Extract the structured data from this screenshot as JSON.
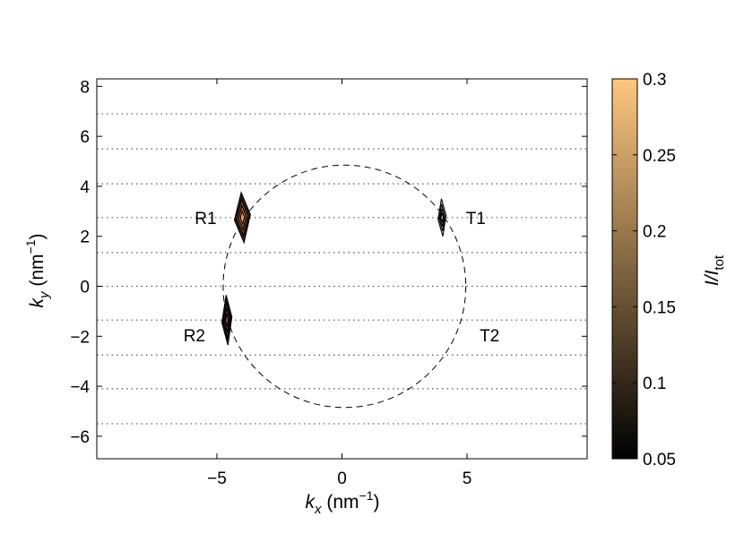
{
  "chart_data": {
    "type": "contour",
    "xlabel": {
      "main": "k",
      "sub": "x",
      "unit_pre": " (nm",
      "unit_sup": "−1",
      "unit_post": ")"
    },
    "ylabel": {
      "main": "k",
      "sub": "y",
      "unit_pre": " (nm",
      "unit_sup": "−1",
      "unit_post": ")"
    },
    "xlim": [
      -9.8,
      9.8
    ],
    "ylim": [
      -6.9,
      8.3
    ],
    "x_ticks": [
      {
        "value": -5,
        "label": "−5"
      },
      {
        "value": 0,
        "label": "0"
      },
      {
        "value": 5,
        "label": "5"
      }
    ],
    "y_ticks": [
      {
        "value": -6,
        "label": "−6"
      },
      {
        "value": -4,
        "label": "−4"
      },
      {
        "value": -2,
        "label": "−2"
      },
      {
        "value": 0,
        "label": "0"
      },
      {
        "value": 2,
        "label": "2"
      },
      {
        "value": 4,
        "label": "4"
      },
      {
        "value": 6,
        "label": "6"
      },
      {
        "value": 8,
        "label": "8"
      }
    ],
    "dotted_lines_ky": [
      6.9,
      5.5,
      4.1,
      2.75,
      1.35,
      0,
      -1.35,
      -2.75,
      -4.1,
      -5.5
    ],
    "circle": {
      "center": [
        0.1,
        0
      ],
      "radius": 4.85,
      "style": "dashed"
    },
    "peaks": [
      {
        "label": "R1",
        "kx": -3.98,
        "ky": 2.75,
        "peak_intensity": 0.25,
        "half_width_kx": 0.32,
        "half_height_ky": 1.0
      },
      {
        "label": "R2",
        "kx": -4.6,
        "ky": -1.35,
        "peak_intensity": 0.17,
        "half_width_kx": 0.2,
        "half_height_ky": 1.0
      },
      {
        "label": "T1",
        "kx": 4.0,
        "ky": 2.75,
        "peak_intensity": 0.07,
        "half_width_kx": 0.16,
        "half_height_ky": 0.75
      },
      {
        "label": "T2",
        "kx": 4.6,
        "ky": -1.35,
        "peak_intensity": 0.0
      }
    ],
    "label_positions": {
      "R1": [
        -5.45,
        2.75
      ],
      "R2": [
        -5.9,
        -1.95
      ],
      "T1": [
        5.35,
        2.75
      ],
      "T2": [
        5.9,
        -1.95
      ]
    },
    "colorbar": {
      "min": 0.05,
      "max": 0.3,
      "ticks": [
        {
          "value": 0.05,
          "label": "0.05"
        },
        {
          "value": 0.1,
          "label": "0.1"
        },
        {
          "value": 0.15,
          "label": "0.15"
        },
        {
          "value": 0.2,
          "label": "0.2"
        },
        {
          "value": 0.25,
          "label": "0.25"
        },
        {
          "value": 0.3,
          "label": "0.3"
        }
      ],
      "label": {
        "main": "I/I",
        "sub": "tot"
      },
      "colormap": "copper",
      "colormap_stops": [
        "#000000",
        "#3f2819",
        "#7f5033",
        "#bf784c",
        "#fea066",
        "#ffc77f"
      ]
    }
  }
}
